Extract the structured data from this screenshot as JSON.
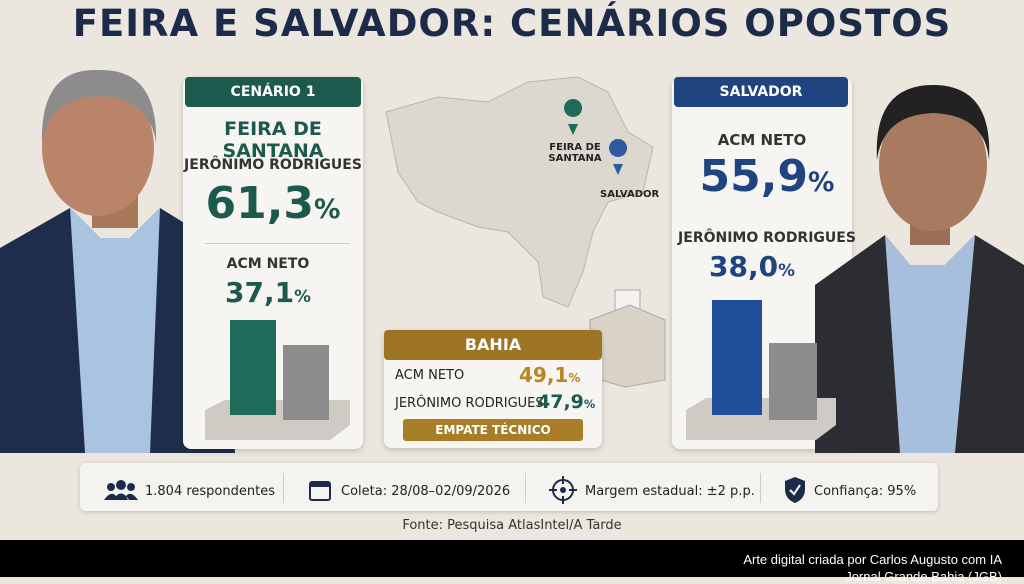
{
  "title": "FEIRA E SALVADOR: CENÁRIOS OPOSTOS",
  "left_card": {
    "header": "CENÁRIO 1",
    "city": "FEIRA DE SANTANA",
    "candidates": [
      {
        "name": "JERÔNIMO RODRIGUES",
        "value": "61,3",
        "unit": "%"
      },
      {
        "name": "ACM NETO",
        "value": "37,1",
        "unit": "%"
      }
    ]
  },
  "map": {
    "labels": [
      "FEIRA DE\nSANTANA",
      "SALVADOR"
    ]
  },
  "bahia": {
    "header": "BAHIA",
    "rows": [
      {
        "name": "ACM NETO",
        "value": "49,1",
        "unit": "%"
      },
      {
        "name": "JERÔNIMO RODRIGUES",
        "value": "47,9",
        "unit": "%"
      }
    ],
    "badge": "EMPATE TÉCNICO"
  },
  "right_card": {
    "header": "SALVADOR",
    "candidates": [
      {
        "name": "ACM NETO",
        "value": "55,9",
        "unit": "%"
      },
      {
        "name": "JERÔNIMO RODRIGUES",
        "value": "38,0",
        "unit": "%"
      }
    ]
  },
  "stats": [
    "1.804 respondentes",
    "Coleta: 28/08–02/09/2026",
    "Margem estadual: ±2 p.p.",
    "Confiança: 95%"
  ],
  "source": "Fonte: Pesquisa AtlasIntel/A Tarde",
  "credit": [
    "Arte digital criada por Carlos Augusto com IA",
    "Jornal Grande Bahia (JGB)"
  ]
}
